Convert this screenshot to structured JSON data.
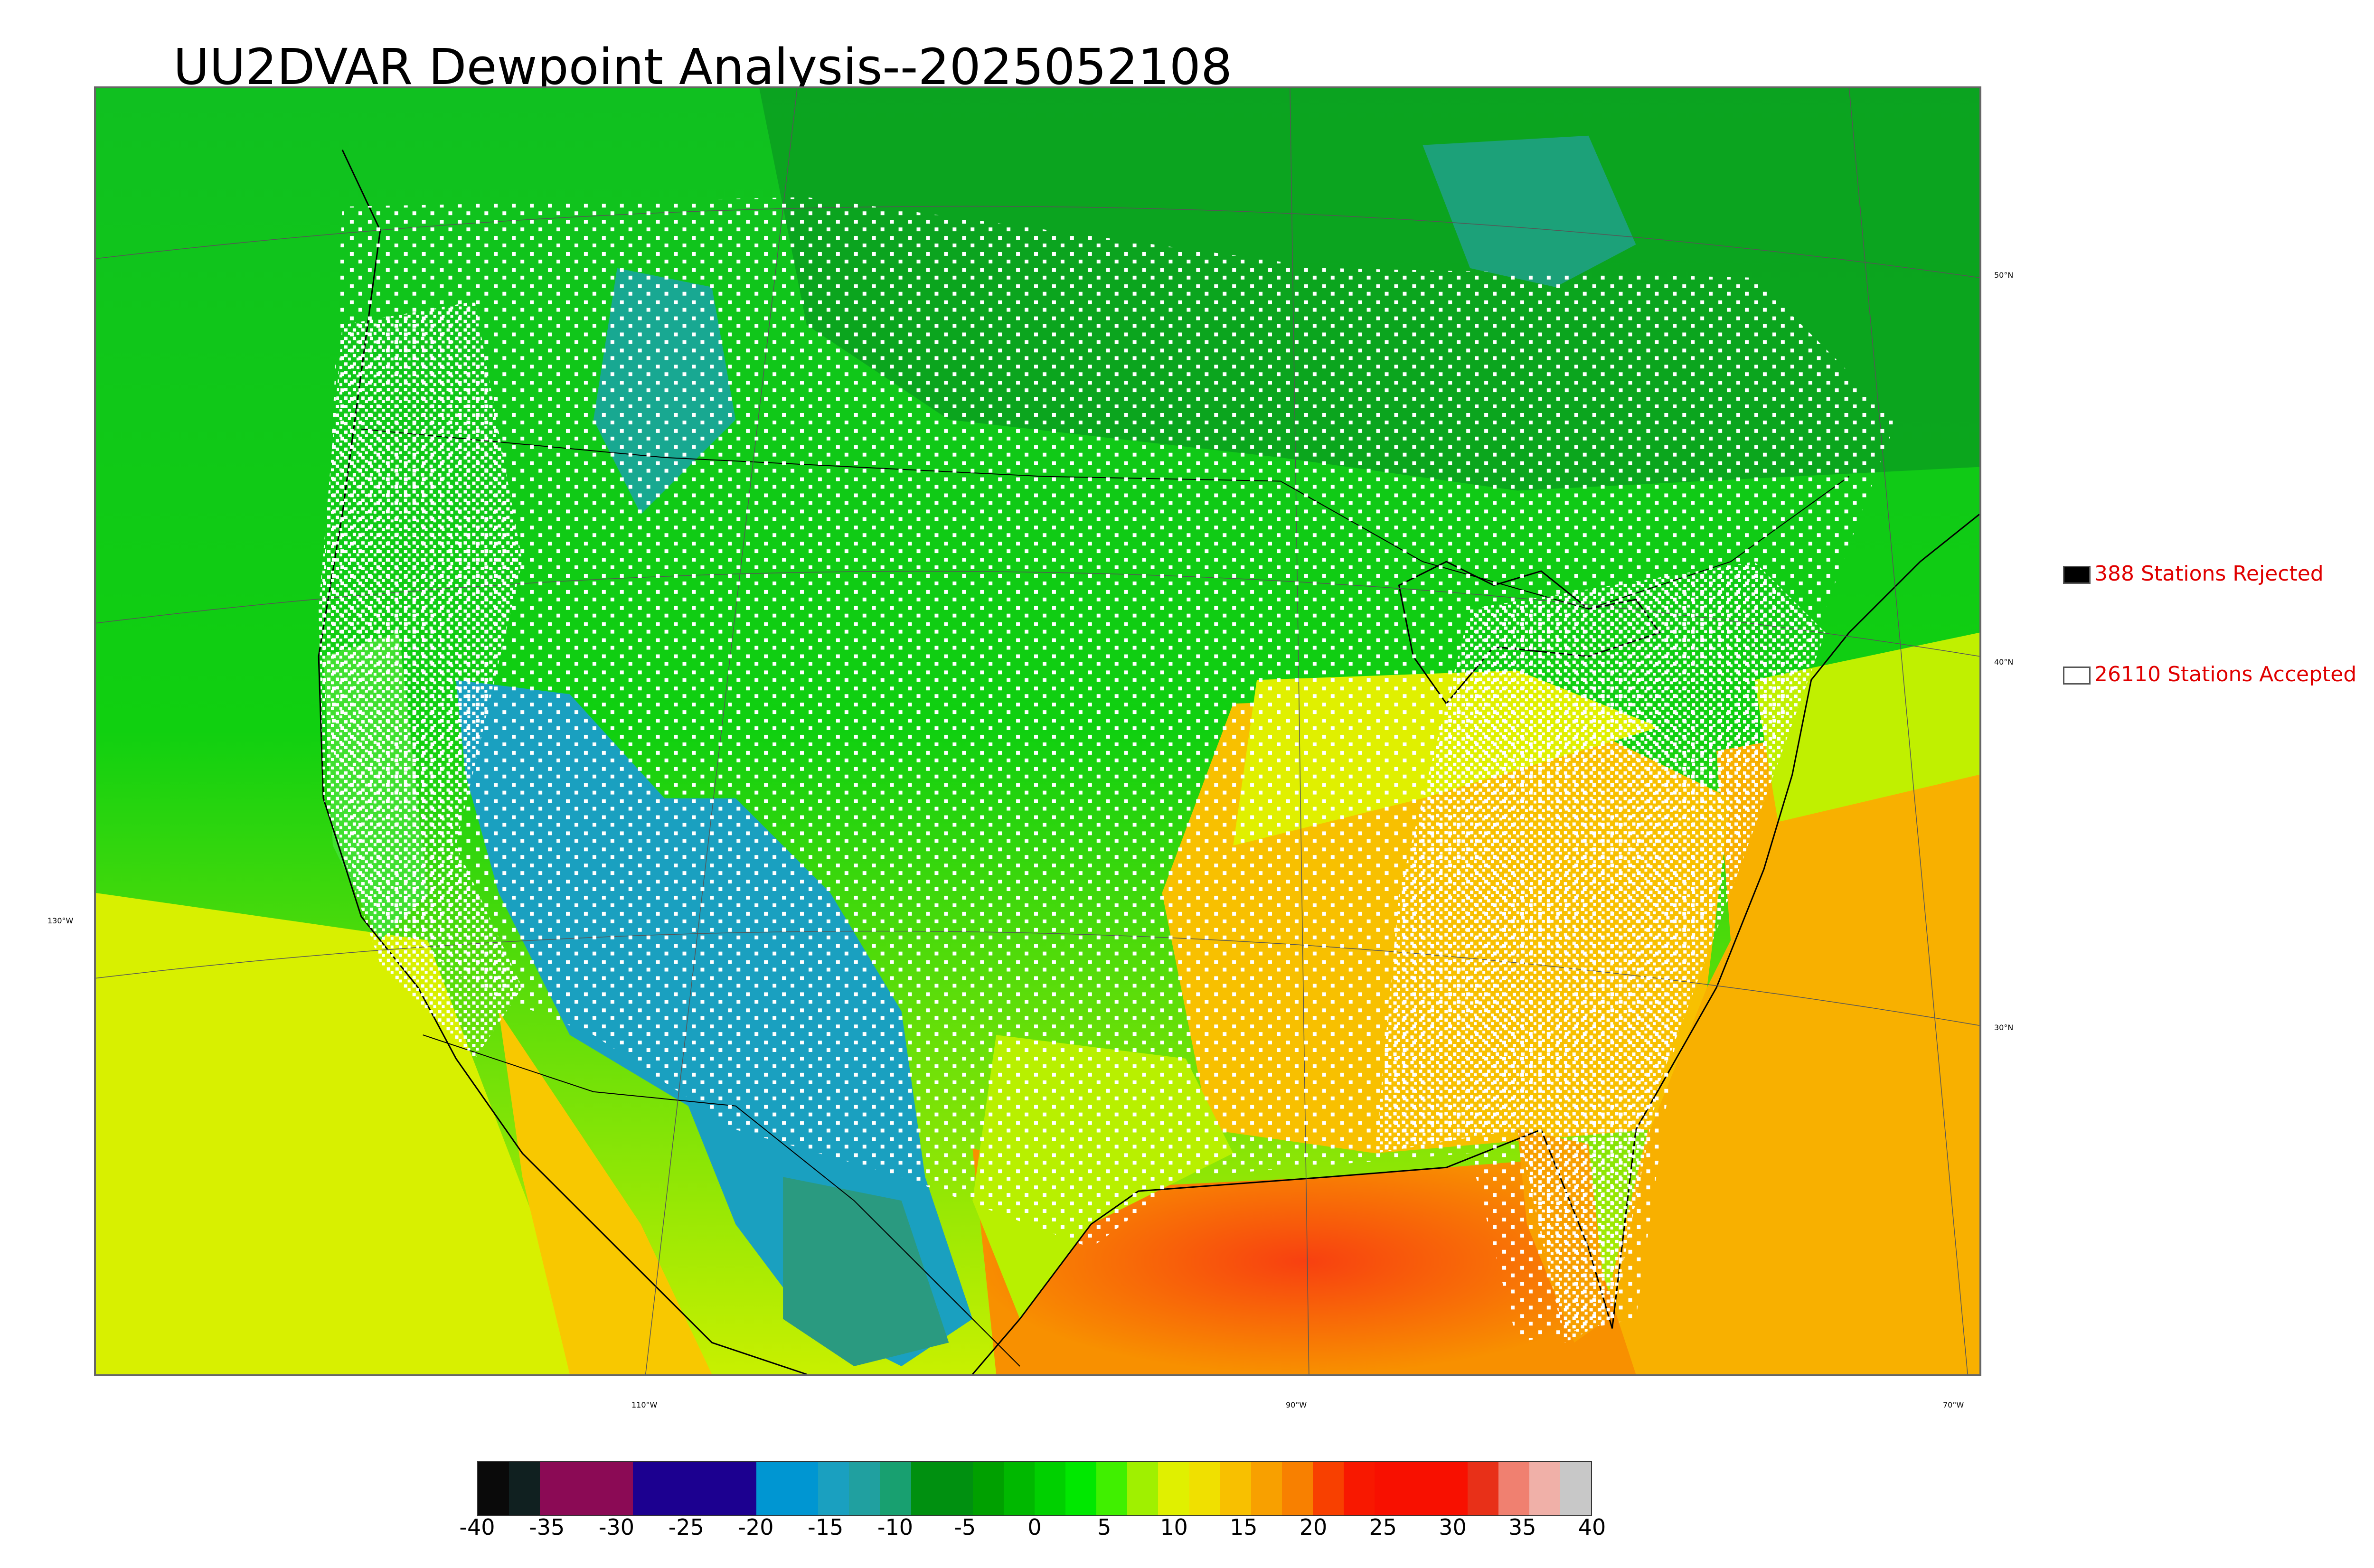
{
  "title": "UU2DVAR Dewpoint Analysis--2025052108",
  "legend": {
    "rejected": {
      "label": "388 Stations Rejected",
      "color": "#000000"
    },
    "accepted": {
      "label": "26110 Stations Accepted",
      "color": "#ffffff"
    }
  },
  "graticule": {
    "lat_labels": [
      "50°N",
      "40°N",
      "30°N"
    ],
    "lon_labels": [
      "130°W",
      "110°W",
      "90°W",
      "70°W"
    ]
  },
  "colorbar": {
    "ticks": [
      "-40",
      "-35",
      "-30",
      "-25",
      "-20",
      "-15",
      "-10",
      "-5",
      "0",
      "5",
      "10",
      "15",
      "20",
      "25",
      "30",
      "35",
      "40"
    ],
    "colors": [
      "#0a0a0a",
      "#102020",
      "#8b0a55",
      "#8b0a55",
      "#8b0a55",
      "#1c0090",
      "#1c0090",
      "#1c0090",
      "#1c0090",
      "#0096d2",
      "#0096d2",
      "#1aa0c0",
      "#20a0a0",
      "#18a070",
      "#009010",
      "#009010",
      "#00a000",
      "#00b800",
      "#00d000",
      "#00e800",
      "#40f000",
      "#a0f000",
      "#e0f000",
      "#f0e000",
      "#f8c000",
      "#f8a000",
      "#f88000",
      "#f84000",
      "#f81800",
      "#f81000",
      "#f81000",
      "#f81000",
      "#e83018",
      "#f08070",
      "#f0b0a8",
      "#c8c8c8"
    ]
  },
  "colors": {
    "land_dry": "#1aa0c0",
    "land_moist": "#00d000",
    "gulf": "#f85010",
    "atlantic": "#f8a800",
    "pacific": "#d8f000"
  }
}
